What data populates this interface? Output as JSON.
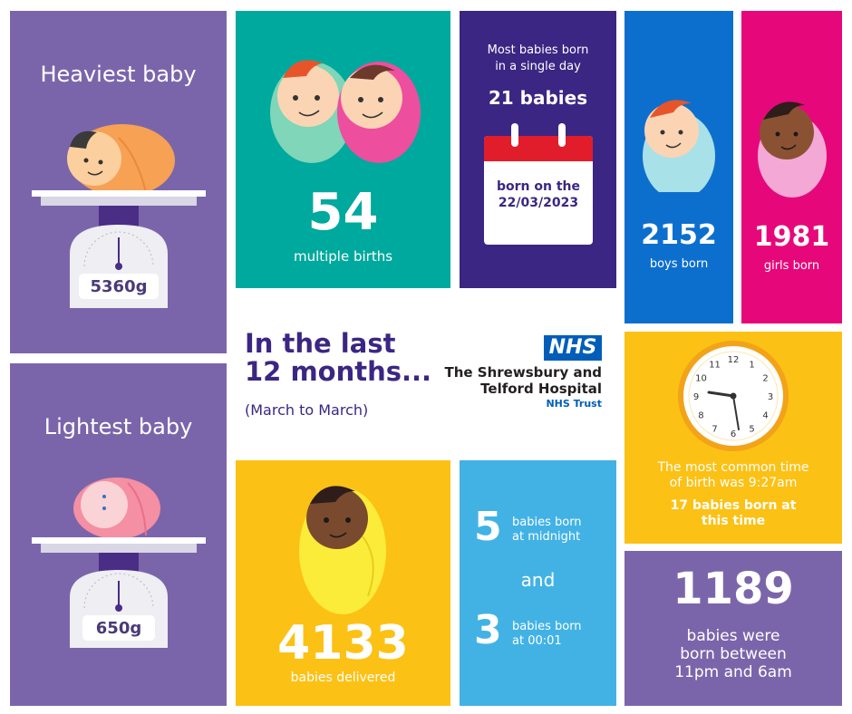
{
  "heaviest": {
    "title": "Heaviest baby",
    "weight": "5360g"
  },
  "lightest": {
    "title": "Lightest baby",
    "weight": "650g"
  },
  "multiple": {
    "number": "54",
    "label": "multiple births"
  },
  "most_day": {
    "heading_line1": "Most babies born",
    "heading_line2": "in a single day",
    "count": "21 babies",
    "date_line1": "born on the",
    "date_line2": "22/03/2023"
  },
  "boys": {
    "number": "2152",
    "label": "boys born"
  },
  "girls": {
    "number": "1981",
    "label": "girls born"
  },
  "intro": {
    "line1": "In the last",
    "line2": "12 months...",
    "sub": "(March to March)"
  },
  "logo": {
    "mark": "NHS",
    "line1": "The Shrewsbury and",
    "line2": "Telford Hospital",
    "line3": "NHS Trust"
  },
  "common_time": {
    "line1": "The most common time",
    "line2": "of birth was 9:27am",
    "bold1": "17 babies born at",
    "bold2": "this time",
    "clock_numbers": [
      "12",
      "1",
      "2",
      "3",
      "4",
      "5",
      "6",
      "7",
      "8",
      "9",
      "10",
      "11"
    ]
  },
  "delivered": {
    "number": "4133",
    "label": "babies delivered"
  },
  "midnight": {
    "num1": "5",
    "label1_line1": "babies born",
    "label1_line2": "at midnight",
    "and": "and",
    "num2": "3",
    "label2_line1": "babies born",
    "label2_line2": "at 00:01"
  },
  "night": {
    "number": "1189",
    "line1": "babies were",
    "line2": "born between",
    "line3": "11pm and 6am"
  },
  "colors": {
    "purple": "#7b65aa",
    "teal": "#00a99d",
    "navy": "#3b2683",
    "blue": "#0d6fcd",
    "pink": "#e6087a",
    "yellow": "#fcc115",
    "sky": "#42b2e5",
    "nhs_blue": "#005eb8",
    "intro_purple": "#3b2683"
  }
}
